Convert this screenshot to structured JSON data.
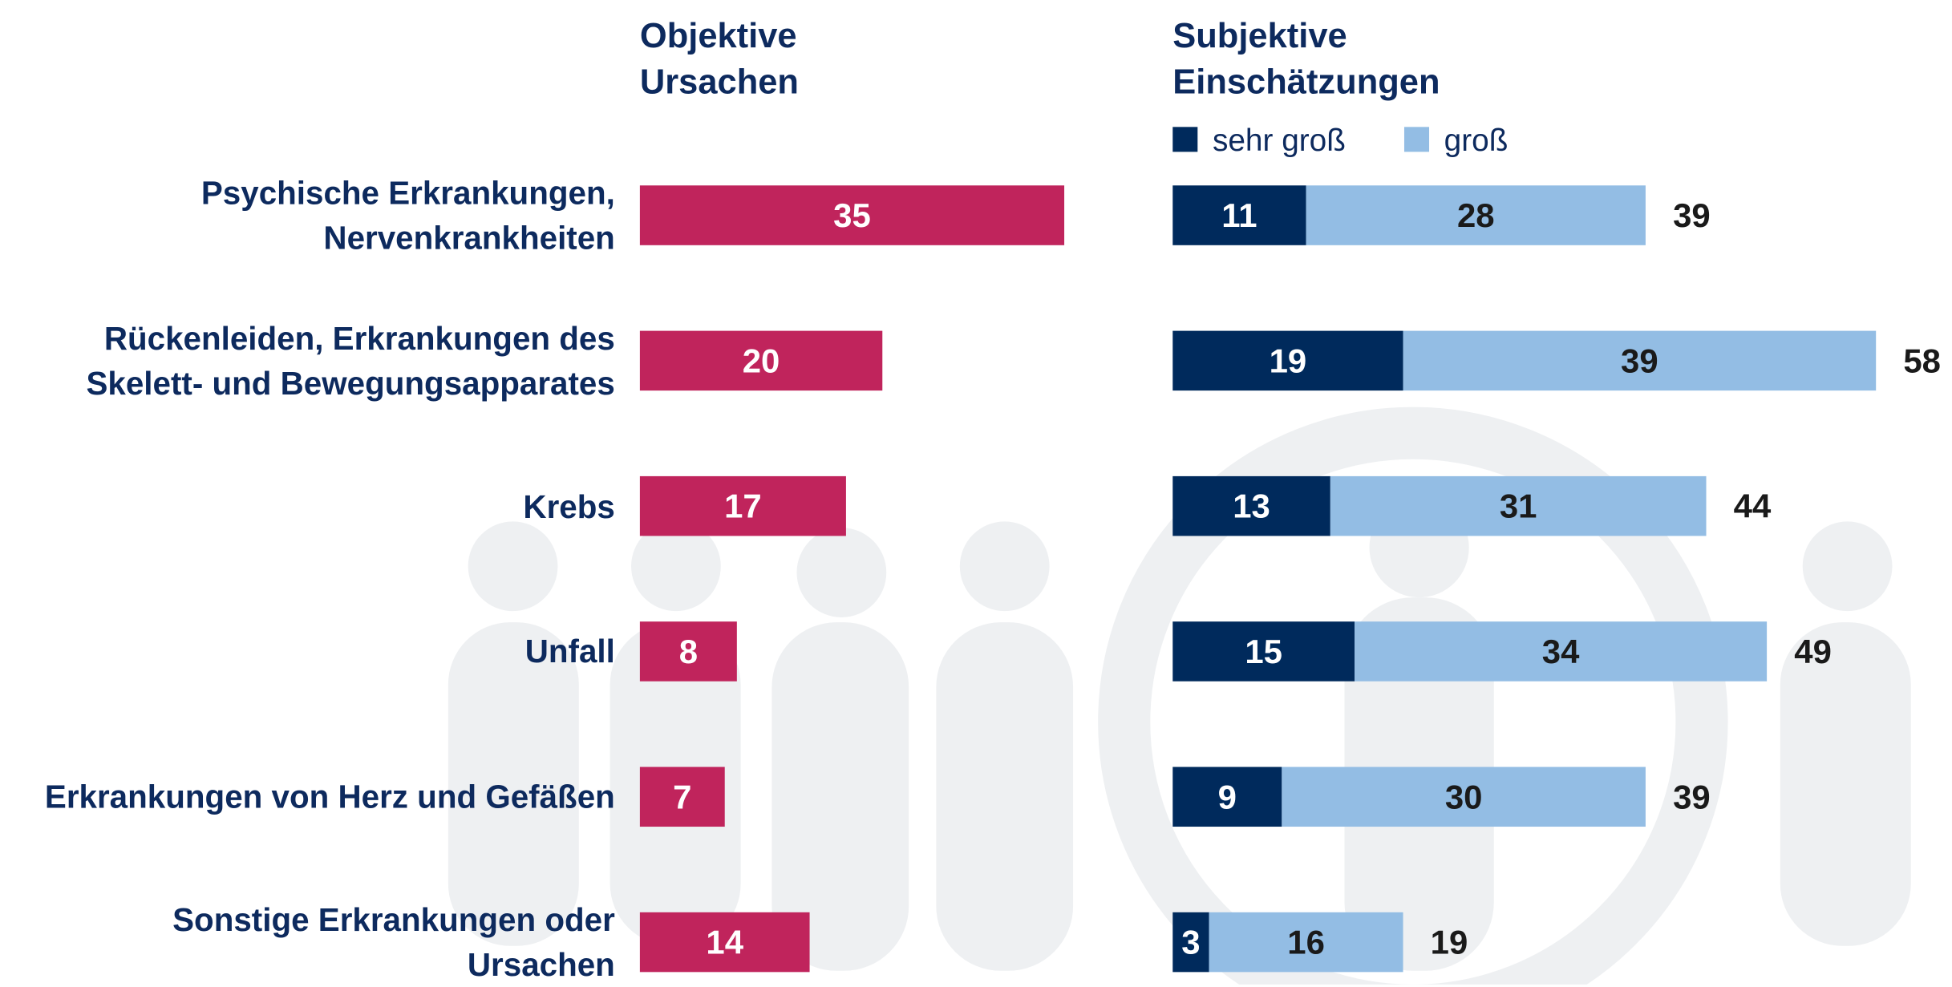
{
  "chart_data": [
    {
      "type": "bar",
      "title": "Objektive Ursachen",
      "categories": [
        "Psychische Erkrankungen, Nervenkrankheiten",
        "Rückenleiden, Erkrankungen des Skelett- und Bewegungsapparates",
        "Krebs",
        "Unfall",
        "Erkrankungen von Herz und Gefäßen",
        "Sonstige Erkrankungen oder Ursachen"
      ],
      "values": [
        35,
        20,
        17,
        8,
        7,
        14
      ],
      "color": "#c0245c"
    },
    {
      "type": "stacked_bar",
      "title": "Subjektive Einschätzungen",
      "series": [
        {
          "name": "sehr groß",
          "color": "#002a5c",
          "values": [
            11,
            19,
            13,
            15,
            9,
            3
          ]
        },
        {
          "name": "groß",
          "color": "#93bde4",
          "values": [
            28,
            39,
            31,
            34,
            30,
            16
          ]
        }
      ],
      "totals": [
        39,
        58,
        44,
        49,
        39,
        19
      ]
    }
  ]
}
